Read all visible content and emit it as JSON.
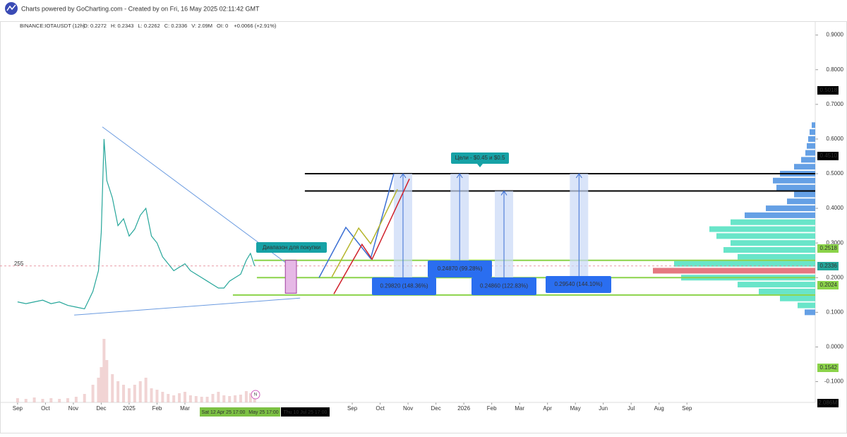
{
  "header": {
    "title": "Charts powered by GoCharting.com - Created by  on Fri, 16 May 2025 02:11:42 GMT"
  },
  "chart_data": {
    "type": "line",
    "ticker": "BINANCE:IOTAUSDT (12h)",
    "ohlc": [
      "O: 0.2272",
      "H: 0.2343",
      "L: 0.2262",
      "C: 0.2336",
      "V: 2.09M",
      "OI: 0"
    ],
    "change": "+0.0066  (+2.91%)",
    "color": "#26a69a",
    "x": [
      0,
      0.3,
      0.6,
      0.9,
      1.2,
      1.5,
      1.8,
      2.1,
      2.4,
      2.7,
      2.9,
      3.0,
      3.1,
      3.2,
      3.4,
      3.6,
      3.8,
      4.0,
      4.2,
      4.4,
      4.6,
      4.8,
      5.0,
      5.2,
      5.4,
      5.6,
      5.8,
      6.0,
      6.2,
      6.4,
      6.6,
      6.8,
      7.0,
      7.2,
      7.4,
      7.6,
      7.8,
      8.0,
      8.2,
      8.35,
      8.5
    ],
    "values": [
      0.13,
      0.125,
      0.13,
      0.135,
      0.125,
      0.13,
      0.12,
      0.115,
      0.11,
      0.16,
      0.22,
      0.33,
      0.6,
      0.48,
      0.43,
      0.35,
      0.37,
      0.32,
      0.34,
      0.38,
      0.4,
      0.32,
      0.3,
      0.26,
      0.24,
      0.22,
      0.23,
      0.24,
      0.22,
      0.21,
      0.2,
      0.19,
      0.18,
      0.17,
      0.17,
      0.19,
      0.2,
      0.21,
      0.25,
      0.27,
      0.2336
    ],
    "volume": [
      0.6,
      0.5,
      0.7,
      0.5,
      0.6,
      0.5,
      0.6,
      0.8,
      1.2,
      2.5,
      3.5,
      5,
      9,
      6,
      4,
      3,
      2.5,
      2,
      2.5,
      3,
      3.5,
      2,
      1.8,
      1.5,
      1.2,
      1,
      1.3,
      1.5,
      1,
      0.9,
      0.8,
      0.8,
      1.2,
      1.5,
      1,
      0.9,
      1,
      1.1,
      1.6,
      1.3,
      0.9
    ],
    "volume_ylim": [
      0,
      10
    ],
    "xlim": [
      -0.63,
      28.6
    ],
    "ylim": [
      -0.16,
      0.94
    ],
    "xticks": [
      {
        "value": 0,
        "label": "Sep"
      },
      {
        "value": 1,
        "label": "Oct"
      },
      {
        "value": 2,
        "label": "Nov"
      },
      {
        "value": 3,
        "label": "Dec"
      },
      {
        "value": 4,
        "label": "2025"
      },
      {
        "value": 5,
        "label": "Feb"
      },
      {
        "value": 6,
        "label": "Mar"
      },
      {
        "value": 12,
        "label": "Sep"
      },
      {
        "value": 13,
        "label": "Oct"
      },
      {
        "value": 14,
        "label": "Nov"
      },
      {
        "value": 15,
        "label": "Dec"
      },
      {
        "value": 16,
        "label": "2026"
      },
      {
        "value": 17,
        "label": "Feb"
      },
      {
        "value": 18,
        "label": "Mar"
      },
      {
        "value": 19,
        "label": "Apr"
      },
      {
        "value": 20,
        "label": "May"
      },
      {
        "value": 21,
        "label": "Jun"
      },
      {
        "value": 22,
        "label": "Jul"
      },
      {
        "value": 23,
        "label": "Aug"
      },
      {
        "value": 24,
        "label": "Sep"
      }
    ],
    "yticks": [
      {
        "value": 0.9,
        "label": "0.9000"
      },
      {
        "value": 0.8,
        "label": "0.8000"
      },
      {
        "value": 0.7,
        "label": "0.7000"
      },
      {
        "value": 0.6,
        "label": "0.6000"
      },
      {
        "value": 0.5,
        "label": "0.5000"
      },
      {
        "value": 0.4,
        "label": "0.4000"
      },
      {
        "value": 0.3,
        "label": "0.3000"
      },
      {
        "value": 0.2,
        "label": "0.2000"
      },
      {
        "value": 0.1,
        "label": "0.1000"
      },
      {
        "value": 0,
        "label": "0.0000"
      },
      {
        "value": -0.1,
        "label": "-0.1000"
      }
    ],
    "axis_badges": [
      "0.5018",
      "0.4510",
      "0.2518",
      "0.2336",
      "0.2024",
      "0.1542",
      "2.086M"
    ],
    "current_price": 0.2336,
    "left_label": "255",
    "date_markers": [
      "Sat 12 Apr 25 17:00",
      "May 25 17:00",
      "Thu 10 Jul 25 17:00"
    ],
    "marker_n": "N",
    "levels": [
      {
        "value": 0.5,
        "from": 10.3,
        "color": "#000000"
      },
      {
        "value": 0.45,
        "from": 10.3,
        "color": "#000000"
      },
      {
        "value": 0.25,
        "from": 8.48,
        "color": "#8bd34a"
      },
      {
        "value": 0.2,
        "from": 8.58,
        "color": "#8bd34a"
      },
      {
        "value": 0.15,
        "from": 7.72,
        "color": "#8bd34a"
      }
    ],
    "trendlines": [
      {
        "x": [
          3.04,
          10.0
        ],
        "y": [
          0.635,
          0.22
        ]
      },
      {
        "x": [
          2.03,
          10.13
        ],
        "y": [
          0.092,
          0.141
        ]
      }
    ],
    "buy_zone": {
      "x": [
        9.6,
        10.0
      ],
      "y": [
        0.155,
        0.25
      ],
      "label": "Диапазон для покупки"
    },
    "projections": [
      {
        "color": "#3b6fd4",
        "x": [
          10.81,
          11.77,
          12.66,
          13.49
        ],
        "y": [
          0.2,
          0.345,
          0.255,
          0.5
        ]
      },
      {
        "color": "#b5b52a",
        "x": [
          11.27,
          12.23,
          12.66,
          13.62
        ],
        "y": [
          0.202,
          0.343,
          0.298,
          0.455
        ]
      },
      {
        "color": "#d0202a",
        "x": [
          11.34,
          12.35,
          12.71,
          14.05
        ],
        "y": [
          0.153,
          0.296,
          0.253,
          0.485
        ]
      }
    ],
    "targets": [
      {
        "x": 13.82,
        "from": 0.2,
        "to": 0.5,
        "label": "0.29820 (148.36%)"
      },
      {
        "x": 15.85,
        "from": 0.25,
        "to": 0.5,
        "label": "0.24870 (99.28%)"
      },
      {
        "x": 17.44,
        "from": 0.2,
        "to": 0.45,
        "label": "0.24860 (122.83%)"
      },
      {
        "x": 20.13,
        "from": 0.2,
        "to": 0.5,
        "label": "0.29540 (144.10%)"
      }
    ],
    "goal_label": "Цели - $0.45 и $0.5",
    "volume_profile": {
      "prices": [
        0.64,
        0.62,
        0.6,
        0.58,
        0.56,
        0.54,
        0.52,
        0.5,
        0.48,
        0.46,
        0.44,
        0.42,
        0.4,
        0.38,
        0.36,
        0.34,
        0.32,
        0.3,
        0.28,
        0.26,
        0.24,
        0.22,
        0.2,
        0.18,
        0.16,
        0.14,
        0.12,
        0.1
      ],
      "values": [
        5,
        8,
        10,
        12,
        14,
        20,
        30,
        50,
        60,
        55,
        30,
        40,
        70,
        100,
        120,
        150,
        140,
        120,
        130,
        110,
        200,
        230,
        190,
        110,
        80,
        50,
        25,
        15
      ],
      "colors": [
        "#4a8fe0",
        "#4a8fe0",
        "#4a8fe0",
        "#4a8fe0",
        "#4a8fe0",
        "#4a8fe0",
        "#4a8fe0",
        "#4a8fe0",
        "#4a8fe0",
        "#4a8fe0",
        "#4a8fe0",
        "#4a8fe0",
        "#4a8fe0",
        "#4a8fe0",
        "#4fe0c0",
        "#4fe0c0",
        "#4fe0c0",
        "#4fe0c0",
        "#4fe0c0",
        "#4fe0c0",
        "#4fe0c0",
        "#e0606a",
        "#4fe0c0",
        "#4fe0c0",
        "#4fe0c0",
        "#4fe0c0",
        "#4fe0c0",
        "#4a8fe0"
      ]
    }
  }
}
